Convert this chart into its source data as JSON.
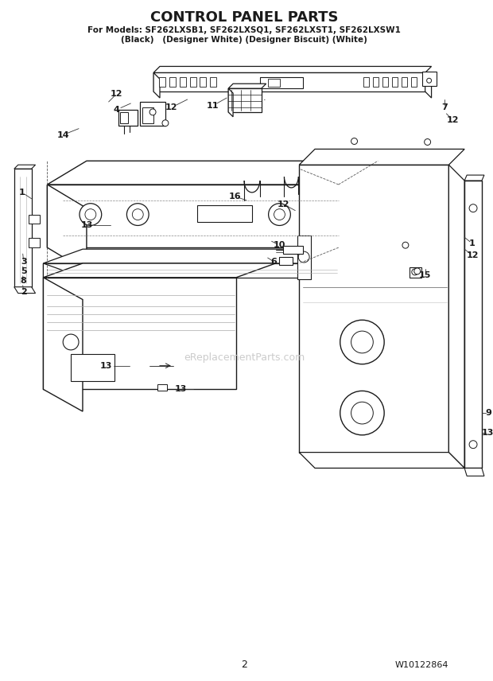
{
  "title": "CONTROL PANEL PARTS",
  "subtitle_line1": "For Models: SF262LXSB1, SF262LXSQ1, SF262LXST1, SF262LXSW1",
  "subtitle_line2": "(Black)   (Designer White) (Designer Biscuit) (White)",
  "page_number": "2",
  "part_number": "W10122864",
  "watermark": "eReplacementParts.com",
  "bg": "#ffffff",
  "lc": "#1a1a1a",
  "figsize": [
    6.2,
    8.56
  ],
  "dpi": 100
}
